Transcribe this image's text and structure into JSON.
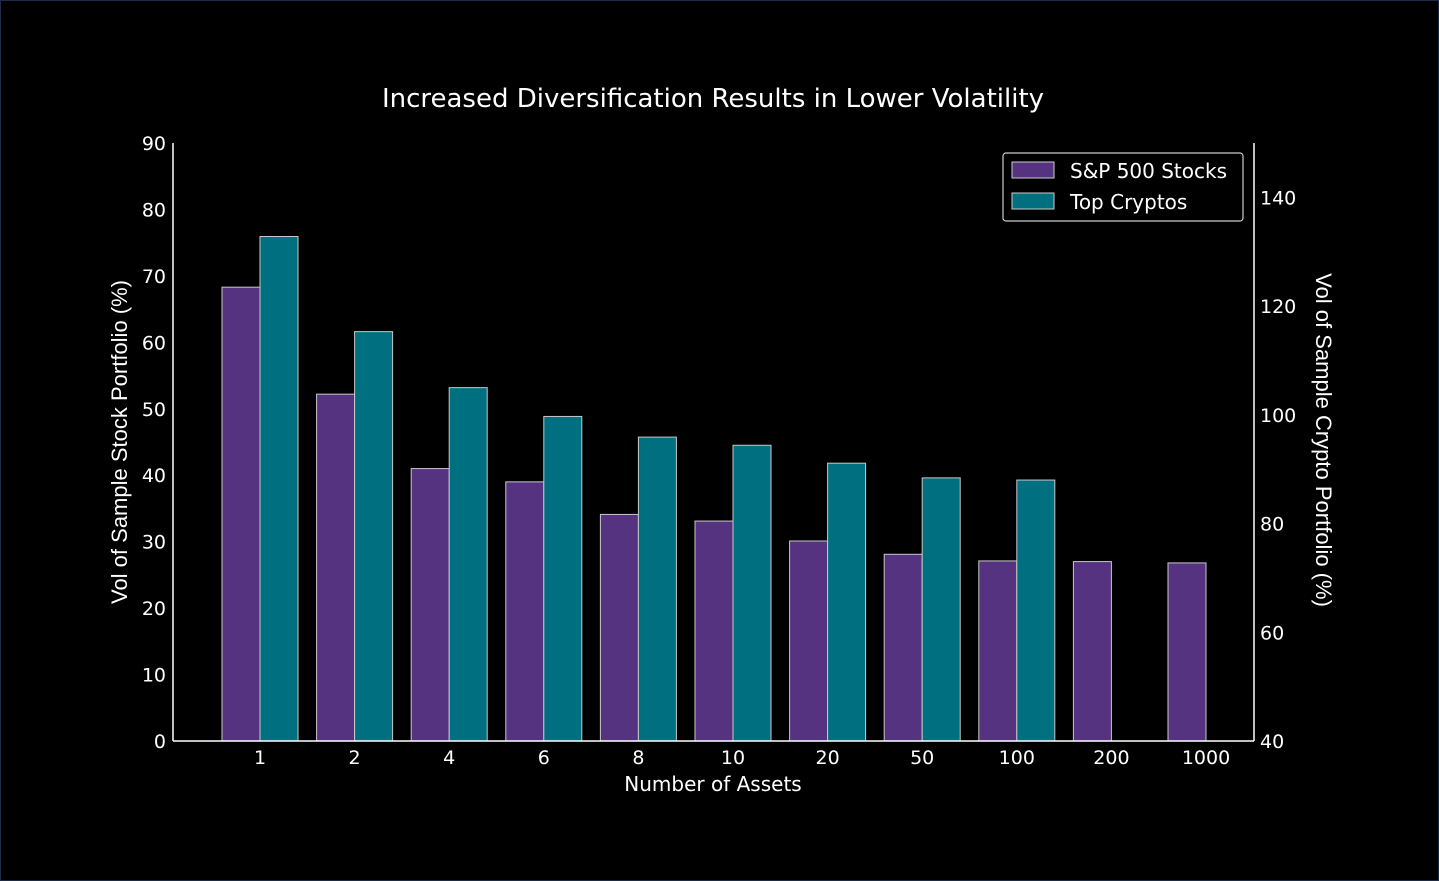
{
  "chart_data": {
    "type": "bar",
    "title": "Increased Diversification Results in Lower Volatility",
    "xlabel": "Number of Assets",
    "ylabel": "Vol of Sample Stock Portfolio (%)",
    "y2label": "Vol of Sample Crypto Portfolio (%)",
    "categories": [
      "1",
      "2",
      "4",
      "6",
      "8",
      "10",
      "20",
      "50",
      "100",
      "200",
      "1000"
    ],
    "ylim": [
      0,
      90
    ],
    "y_ticks": [
      "0",
      "10",
      "20",
      "30",
      "40",
      "50",
      "60",
      "70",
      "80",
      "90"
    ],
    "y2lim": [
      40,
      150
    ],
    "y2_ticks": [
      "40",
      "60",
      "80",
      "100",
      "120",
      "140"
    ],
    "grid": false,
    "legend_position": "top-right",
    "series": [
      {
        "name": "S&P 500 Stocks",
        "axis": "left",
        "color": "#553381",
        "values": [
          68.3,
          52.2,
          41.0,
          39.0,
          34.1,
          33.1,
          30.1,
          28.1,
          27.1,
          27.0,
          26.8
        ]
      },
      {
        "name": "Top Cryptos",
        "axis": "right",
        "color": "#007080",
        "values": [
          132.8,
          115.3,
          105.0,
          99.7,
          95.9,
          94.4,
          91.1,
          88.4,
          88.0,
          null,
          null
        ]
      }
    ]
  }
}
